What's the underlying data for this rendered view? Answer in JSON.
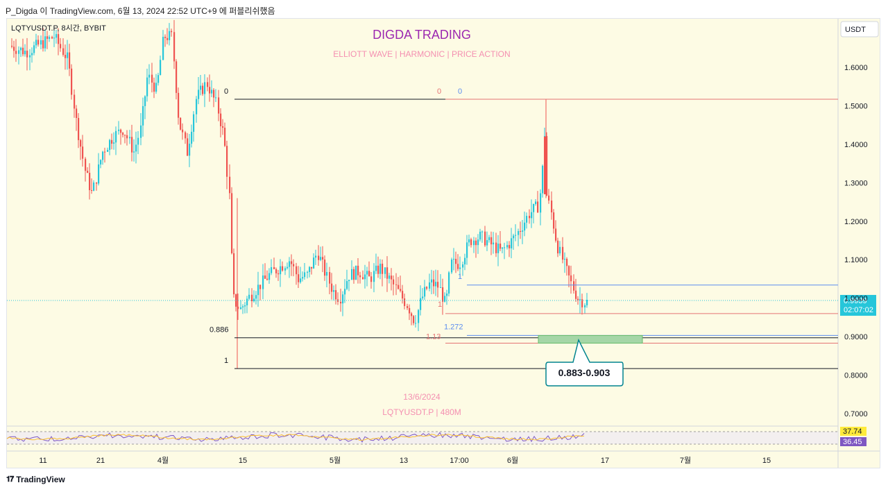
{
  "header": {
    "author_line": "P_Digda 이 TradingView.com, 6월 13, 2024 22:52 UTC+9 에 퍼블리쉬했음"
  },
  "footer": {
    "brand": "TradingView"
  },
  "chart_data": {
    "type": "candlestick",
    "symbol": "LQTYUSDT.P, 8시간, BYBIT",
    "title": "DIGDA TRADING",
    "subtitle": "ELLIOTT WAVE   |   HARMONIC   |   PRICE ACTION",
    "watermark_date": "13/6/2024",
    "watermark_symbol": "LQTYUSDT.P | 480M",
    "currency": "USDT",
    "y_ticks": [
      "1.6000",
      "1.5000",
      "1.4000",
      "1.3000",
      "1.2000",
      "1.1000",
      "1.0000",
      "0.9000",
      "0.8000",
      "0.7000"
    ],
    "ylim": [
      0.64,
      1.76
    ],
    "x_ticks": [
      "11",
      "21",
      "4월",
      "15",
      "5월",
      "13",
      "17:00",
      "6월",
      "17",
      "7월",
      "15"
    ],
    "last_price": "0.9939",
    "countdown": "02:07:02",
    "fib_left": {
      "levels": [
        {
          "label": "0",
          "value": 1.517
        },
        {
          "label": "0.886",
          "value": 0.897
        },
        {
          "label": "1",
          "value": 0.817
        }
      ]
    },
    "fib_right": {
      "levels": [
        {
          "label": "0",
          "value": 1.517
        },
        {
          "label": "1",
          "value": 0.96
        },
        {
          "label": "1.13",
          "value": 0.883
        }
      ]
    },
    "fib_blue": {
      "levels": [
        {
          "label": "0",
          "value": 1.517
        },
        {
          "label": "1",
          "value": 1.034
        },
        {
          "label": "1.272",
          "value": 0.903
        }
      ]
    },
    "target_zone": {
      "low": 0.883,
      "high": 0.903,
      "label": "0.883-0.903"
    },
    "rsi": {
      "values": [
        "37.74",
        "36.45"
      ]
    },
    "colors": {
      "up": "#26c6da",
      "down": "#ef5350",
      "title": "#9c27b0",
      "subtitle": "#f48fb1",
      "fib_red": "#e57373",
      "fib_blue": "#5b8def",
      "zone": "#a5d6a7",
      "callout": "#00838f"
    }
  }
}
